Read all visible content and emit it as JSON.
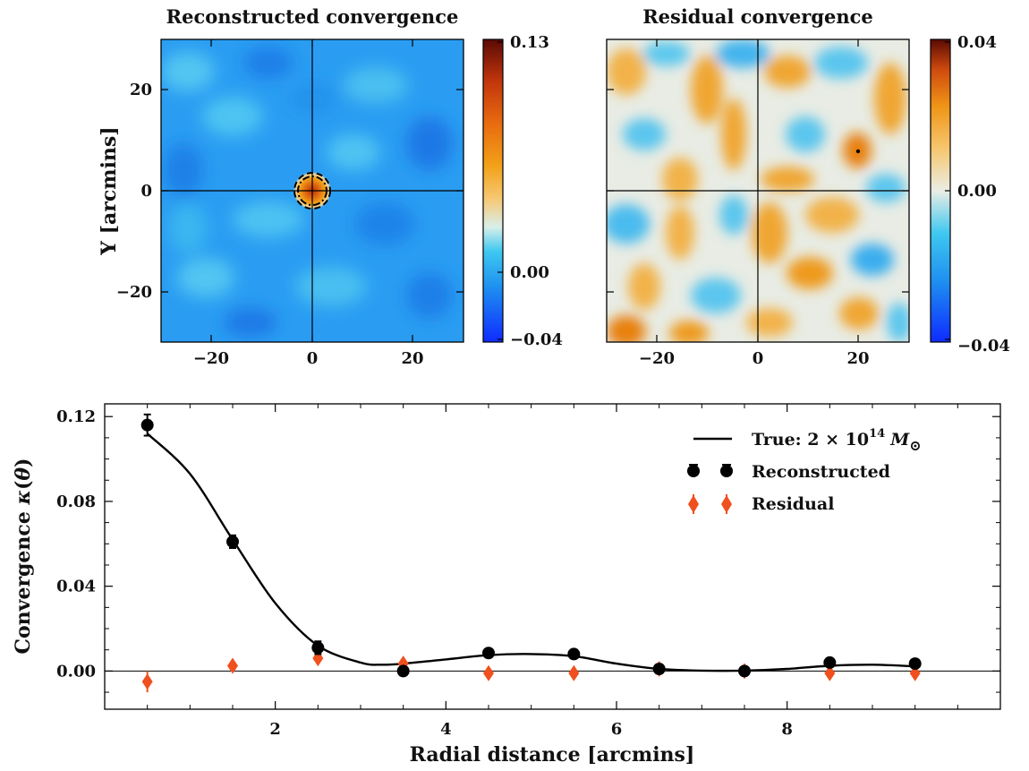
{
  "chart_data": [
    {
      "type": "heatmap",
      "title": "Reconstructed convergence",
      "ylabel": "Y [arcmins]",
      "xlim": [
        -30,
        30
      ],
      "ylim": [
        -30,
        30
      ],
      "xticks": [
        "−20",
        "0",
        "20"
      ],
      "yticks": [
        "20",
        "0",
        "−20"
      ],
      "colorbar": {
        "min": -0.04,
        "max": 0.13,
        "tick_labels": [
          "0.13",
          "0.00",
          "−0.04"
        ]
      },
      "features": [
        "central peak at (0,0) outlined by dashed and dash-dot circles",
        "crosshair lines at x=0 and y=0"
      ]
    },
    {
      "type": "heatmap",
      "title": "Residual convergence",
      "xlim": [
        -30,
        30
      ],
      "ylim": [
        -30,
        30
      ],
      "xticks": [
        "−20",
        "0",
        "20"
      ],
      "colorbar": {
        "min": -0.04,
        "max": 0.04,
        "tick_labels": [
          "0.04",
          "0.00",
          "−0.04"
        ]
      },
      "features": [
        "small dot near (20,8)",
        "crosshair lines at x=0 and y=0"
      ]
    },
    {
      "type": "scatter",
      "xlabel": "Radial distance [arcmins]",
      "ylabel": "Convergence κ(θ)",
      "xlim": [
        0,
        10.5
      ],
      "ylim": [
        -0.018,
        0.126
      ],
      "xticks": [
        2,
        4,
        6,
        8
      ],
      "xtick_labels": [
        "2",
        "4",
        "6",
        "8"
      ],
      "yticks": [
        0,
        0.04,
        0.08,
        0.12
      ],
      "ytick_labels": [
        "0.00",
        "0.04",
        "0.08",
        "0.12"
      ],
      "legend_position": "top-right",
      "true_curve": {
        "name": "True: 2 × 10",
        "name_exp": "14",
        "name_unit": "M",
        "name_unit_sub": "⊙",
        "color": "#000000",
        "x": [
          0.5,
          1.0,
          1.5,
          2.0,
          2.5,
          3.0,
          3.25,
          3.5,
          4.0,
          4.5,
          5.0,
          5.5,
          6.0,
          6.5,
          7.0,
          7.5,
          8.0,
          8.5,
          9.0,
          9.5
        ],
        "y": [
          0.112,
          0.093,
          0.062,
          0.032,
          0.012,
          0.004,
          0.003,
          0.0035,
          0.0055,
          0.0075,
          0.008,
          0.007,
          0.0035,
          0.001,
          0.0002,
          0.0002,
          0.001,
          0.0025,
          0.003,
          0.0022
        ]
      },
      "series": [
        {
          "name": "Reconstructed",
          "color": "#000000",
          "marker": "circle",
          "x": [
            0.5,
            1.5,
            2.5,
            3.5,
            4.5,
            5.5,
            6.5,
            7.5,
            8.5,
            9.5
          ],
          "y": [
            0.116,
            0.061,
            0.011,
            0.0,
            0.0085,
            0.008,
            0.001,
            0.0,
            0.004,
            0.0035
          ],
          "err": [
            0.005,
            0.003,
            0.003,
            0.002,
            0.002,
            0.002,
            0.002,
            0.002,
            0.002,
            0.002
          ]
        },
        {
          "name": "Residual",
          "color": "#f0501e",
          "marker": "diamond",
          "x": [
            0.5,
            1.5,
            2.5,
            3.5,
            4.5,
            5.5,
            6.5,
            7.5,
            8.5,
            9.5
          ],
          "y": [
            -0.005,
            0.0025,
            0.006,
            0.0035,
            -0.001,
            -0.001,
            0.001,
            0.0,
            -0.001,
            -0.001
          ],
          "err": [
            0.005,
            0.003,
            0.003,
            0.002,
            0.002,
            0.002,
            0.002,
            0.002,
            0.002,
            0.002
          ]
        }
      ]
    }
  ]
}
